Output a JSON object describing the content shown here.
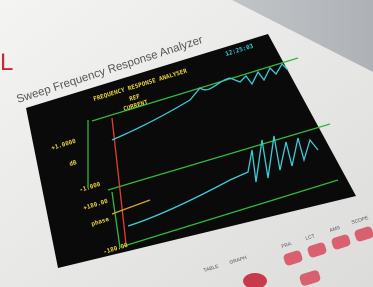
{
  "header": {
    "logo": "L",
    "title": "Sweep Frequency Response Analyzer"
  },
  "screen": {
    "title": "FREQUENCY RESPONSE ANALYSER",
    "ref": "REF",
    "current": "CURRENT",
    "time": "12:25:03",
    "labels": {
      "db_top": "+1.0000",
      "db_unit": "dB",
      "db_bottom": "-1.000",
      "phase_top": "+180.00",
      "phase_unit": "phase",
      "phase_bottom": "-180.00"
    }
  },
  "buttons": [
    "FRA",
    "LCT",
    "AMS",
    "SCOPE",
    "TABLE",
    "GRAPH"
  ]
}
